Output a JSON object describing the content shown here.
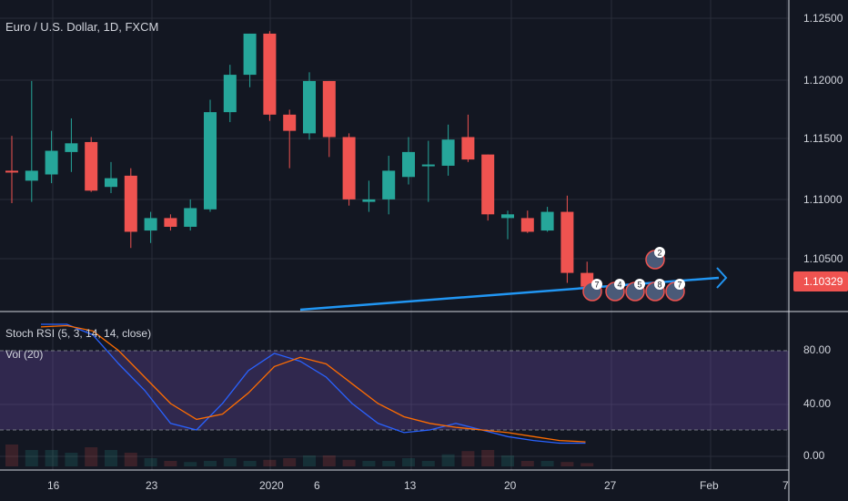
{
  "symbol_title": "Euro / U.S. Dollar, 1D, FXCM",
  "stoch_label": "Stoch RSI (5, 3, 14, 14, close)",
  "vol_label": "Vol (20)",
  "price_axis": {
    "ticks": [
      "1.12500",
      "1.12000",
      "1.11500",
      "1.11000",
      "1.10500"
    ],
    "last_price": "1.10329"
  },
  "osc_axis": {
    "ticks": [
      "80.00",
      "40.00",
      "0.00"
    ]
  },
  "date_axis": {
    "ticks": [
      "16",
      "23",
      "2020",
      "6",
      "13",
      "20",
      "27",
      "Feb",
      "7"
    ]
  },
  "event_badges": [
    "7",
    "4",
    "5",
    "8",
    "7",
    "2"
  ],
  "colors": {
    "background": "#131722",
    "up": "#26a69a",
    "down": "#ef5350",
    "trendline": "#2196f3",
    "stoch_k": "#2962ff",
    "stoch_d": "#ff6d00",
    "stoch_band": "#7e57c2"
  },
  "chart_data": {
    "type": "candlestick",
    "price_range": [
      1.1015,
      1.1265
    ],
    "candles": [
      {
        "o": 1.1128,
        "h": 1.1156,
        "l": 1.1102,
        "c": 1.1127
      },
      {
        "o": 1.112,
        "h": 1.12,
        "l": 1.1103,
        "c": 1.1128
      },
      {
        "o": 1.1125,
        "h": 1.116,
        "l": 1.1118,
        "c": 1.1144
      },
      {
        "o": 1.1143,
        "h": 1.117,
        "l": 1.1127,
        "c": 1.115
      },
      {
        "o": 1.1151,
        "h": 1.1155,
        "l": 1.1111,
        "c": 1.1112
      },
      {
        "o": 1.1115,
        "h": 1.1135,
        "l": 1.111,
        "c": 1.1122
      },
      {
        "o": 1.1124,
        "h": 1.113,
        "l": 1.1066,
        "c": 1.1079
      },
      {
        "o": 1.108,
        "h": 1.1095,
        "l": 1.107,
        "c": 1.109
      },
      {
        "o": 1.109,
        "h": 1.1093,
        "l": 1.108,
        "c": 1.1083
      },
      {
        "o": 1.1083,
        "h": 1.1105,
        "l": 1.108,
        "c": 1.1098
      },
      {
        "o": 1.1097,
        "h": 1.1185,
        "l": 1.1095,
        "c": 1.1175
      },
      {
        "o": 1.1175,
        "h": 1.1213,
        "l": 1.1167,
        "c": 1.1205
      },
      {
        "o": 1.1205,
        "h": 1.1238,
        "l": 1.1195,
        "c": 1.1238
      },
      {
        "o": 1.1238,
        "h": 1.124,
        "l": 1.1168,
        "c": 1.1173
      },
      {
        "o": 1.1173,
        "h": 1.1177,
        "l": 1.113,
        "c": 1.116
      },
      {
        "o": 1.1158,
        "h": 1.1207,
        "l": 1.1153,
        "c": 1.12
      },
      {
        "o": 1.12,
        "h": 1.12,
        "l": 1.1139,
        "c": 1.1155
      },
      {
        "o": 1.1155,
        "h": 1.1158,
        "l": 1.11,
        "c": 1.1105
      },
      {
        "o": 1.1103,
        "h": 1.112,
        "l": 1.1095,
        "c": 1.1105
      },
      {
        "o": 1.1105,
        "h": 1.114,
        "l": 1.1093,
        "c": 1.1128
      },
      {
        "o": 1.1123,
        "h": 1.1155,
        "l": 1.1117,
        "c": 1.1143
      },
      {
        "o": 1.1133,
        "h": 1.1152,
        "l": 1.1103,
        "c": 1.1133
      },
      {
        "o": 1.1132,
        "h": 1.1165,
        "l": 1.1124,
        "c": 1.1153
      },
      {
        "o": 1.1155,
        "h": 1.1173,
        "l": 1.1135,
        "c": 1.1137
      },
      {
        "o": 1.1141,
        "h": 1.1141,
        "l": 1.1088,
        "c": 1.1093
      },
      {
        "o": 1.109,
        "h": 1.1096,
        "l": 1.1073,
        "c": 1.1093
      },
      {
        "o": 1.109,
        "h": 1.1096,
        "l": 1.1078,
        "c": 1.1079
      },
      {
        "o": 1.108,
        "h": 1.1099,
        "l": 1.1079,
        "c": 1.1095
      },
      {
        "o": 1.1095,
        "h": 1.1108,
        "l": 1.1038,
        "c": 1.1046
      },
      {
        "o": 1.1046,
        "h": 1.1055,
        "l": 1.1025,
        "c": 1.1035
      }
    ],
    "stoch_k": [
      100,
      100,
      92,
      70,
      50,
      25,
      20,
      40,
      65,
      78,
      72,
      60,
      40,
      25,
      18,
      20,
      25,
      20,
      15,
      12,
      10,
      10
    ],
    "stoch_d": [
      98,
      99,
      95,
      80,
      60,
      40,
      28,
      32,
      48,
      68,
      75,
      70,
      55,
      40,
      30,
      25,
      22,
      20,
      18,
      15,
      12,
      11
    ],
    "stoch_band": [
      20,
      80
    ],
    "volume": [
      0.4,
      0.3,
      0.3,
      0.25,
      0.35,
      0.3,
      0.25,
      0.15,
      0.1,
      0.08,
      0.1,
      0.15,
      0.1,
      0.12,
      0.15,
      0.2,
      0.2,
      0.12,
      0.1,
      0.1,
      0.15,
      0.1,
      0.22,
      0.28,
      0.3,
      0.2,
      0.1,
      0.1,
      0.08,
      0.06
    ]
  }
}
